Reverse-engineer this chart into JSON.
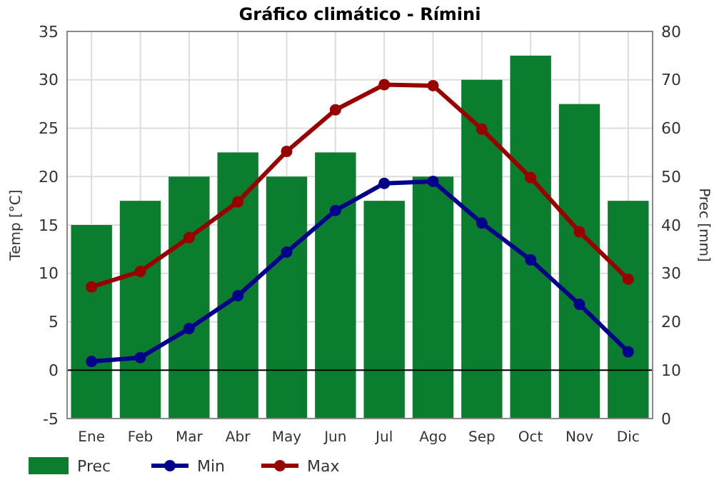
{
  "chart_data": {
    "type": "bar",
    "title": "Gráfico climático - Rímini",
    "ylabel": "Temp [°C]",
    "y2label": "Prec [mm]",
    "categories": [
      "Ene",
      "Feb",
      "Mar",
      "Abr",
      "May",
      "Jun",
      "Jul",
      "Ago",
      "Sep",
      "Oct",
      "Nov",
      "Dic"
    ],
    "series": [
      {
        "name": "Prec",
        "axis": "y2",
        "color": "#0a7d2e",
        "values": [
          40,
          45,
          50,
          55,
          50,
          55,
          45,
          50,
          70,
          75,
          65,
          45
        ]
      },
      {
        "name": "Min",
        "type": "line",
        "color": "#00008b",
        "marker": "circle",
        "values": [
          0.9,
          1.3,
          4.3,
          7.7,
          12.2,
          16.5,
          19.3,
          19.5,
          15.2,
          11.4,
          6.8,
          1.9
        ]
      },
      {
        "name": "Max",
        "type": "line",
        "color": "#990000",
        "marker": "circle",
        "values": [
          8.6,
          10.2,
          13.7,
          17.4,
          22.6,
          26.9,
          29.5,
          29.4,
          24.9,
          19.9,
          14.3,
          9.4
        ]
      }
    ],
    "ylim": [
      -5,
      35
    ],
    "yticks": [
      -5,
      0,
      5,
      10,
      15,
      20,
      25,
      30,
      35
    ],
    "y2lim": [
      0,
      80
    ],
    "y2ticks": [
      0,
      10,
      20,
      30,
      40,
      50,
      60,
      70,
      80
    ],
    "ref_lines": [
      {
        "axis": "y",
        "value": 0,
        "color": "#000000"
      }
    ],
    "grid": true,
    "legend": "bottom"
  }
}
